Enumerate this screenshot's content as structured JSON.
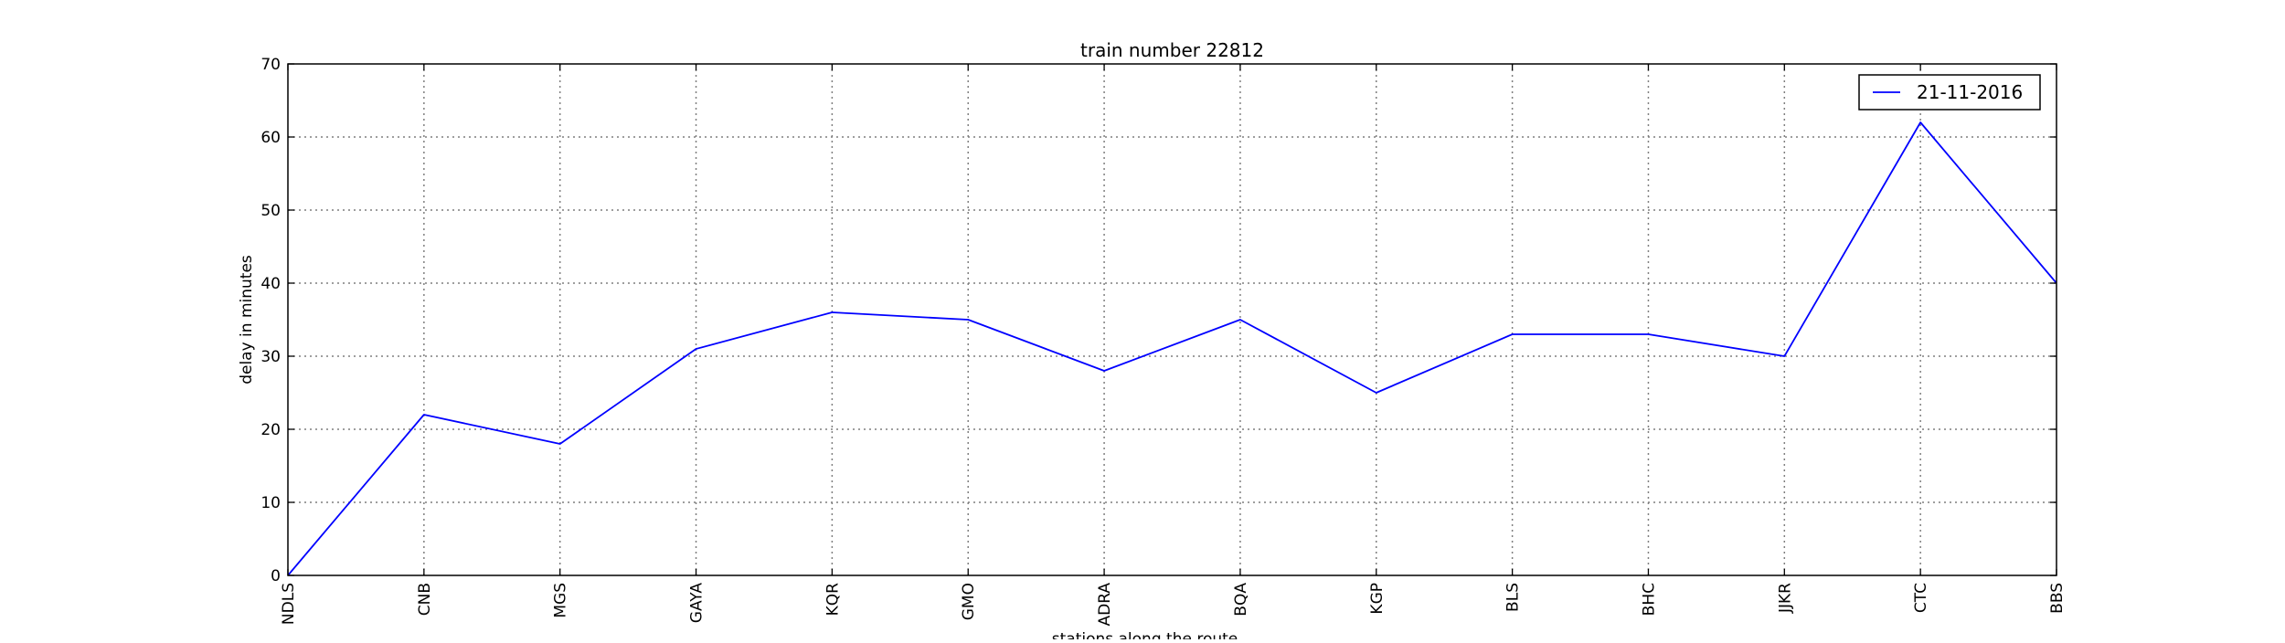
{
  "chart_data": {
    "type": "line",
    "title": "train number 22812",
    "xlabel": "stations along the route",
    "ylabel": "delay in minutes",
    "categories": [
      "NDLS",
      "CNB",
      "MGS",
      "GAYA",
      "KQR",
      "GMO",
      "ADRA",
      "BQA",
      "KGP",
      "BLS",
      "BHC",
      "JJKR",
      "CTC",
      "BBS"
    ],
    "series": [
      {
        "name": "21-11-2016",
        "color": "#0000ff",
        "values": [
          0,
          22,
          18,
          31,
          36,
          35,
          28,
          35,
          25,
          33,
          33,
          30,
          62,
          40
        ]
      }
    ],
    "ylim": [
      0,
      70
    ],
    "yticks": [
      0,
      10,
      20,
      30,
      40,
      50,
      60,
      70
    ],
    "grid": true,
    "legend": "top-right"
  }
}
